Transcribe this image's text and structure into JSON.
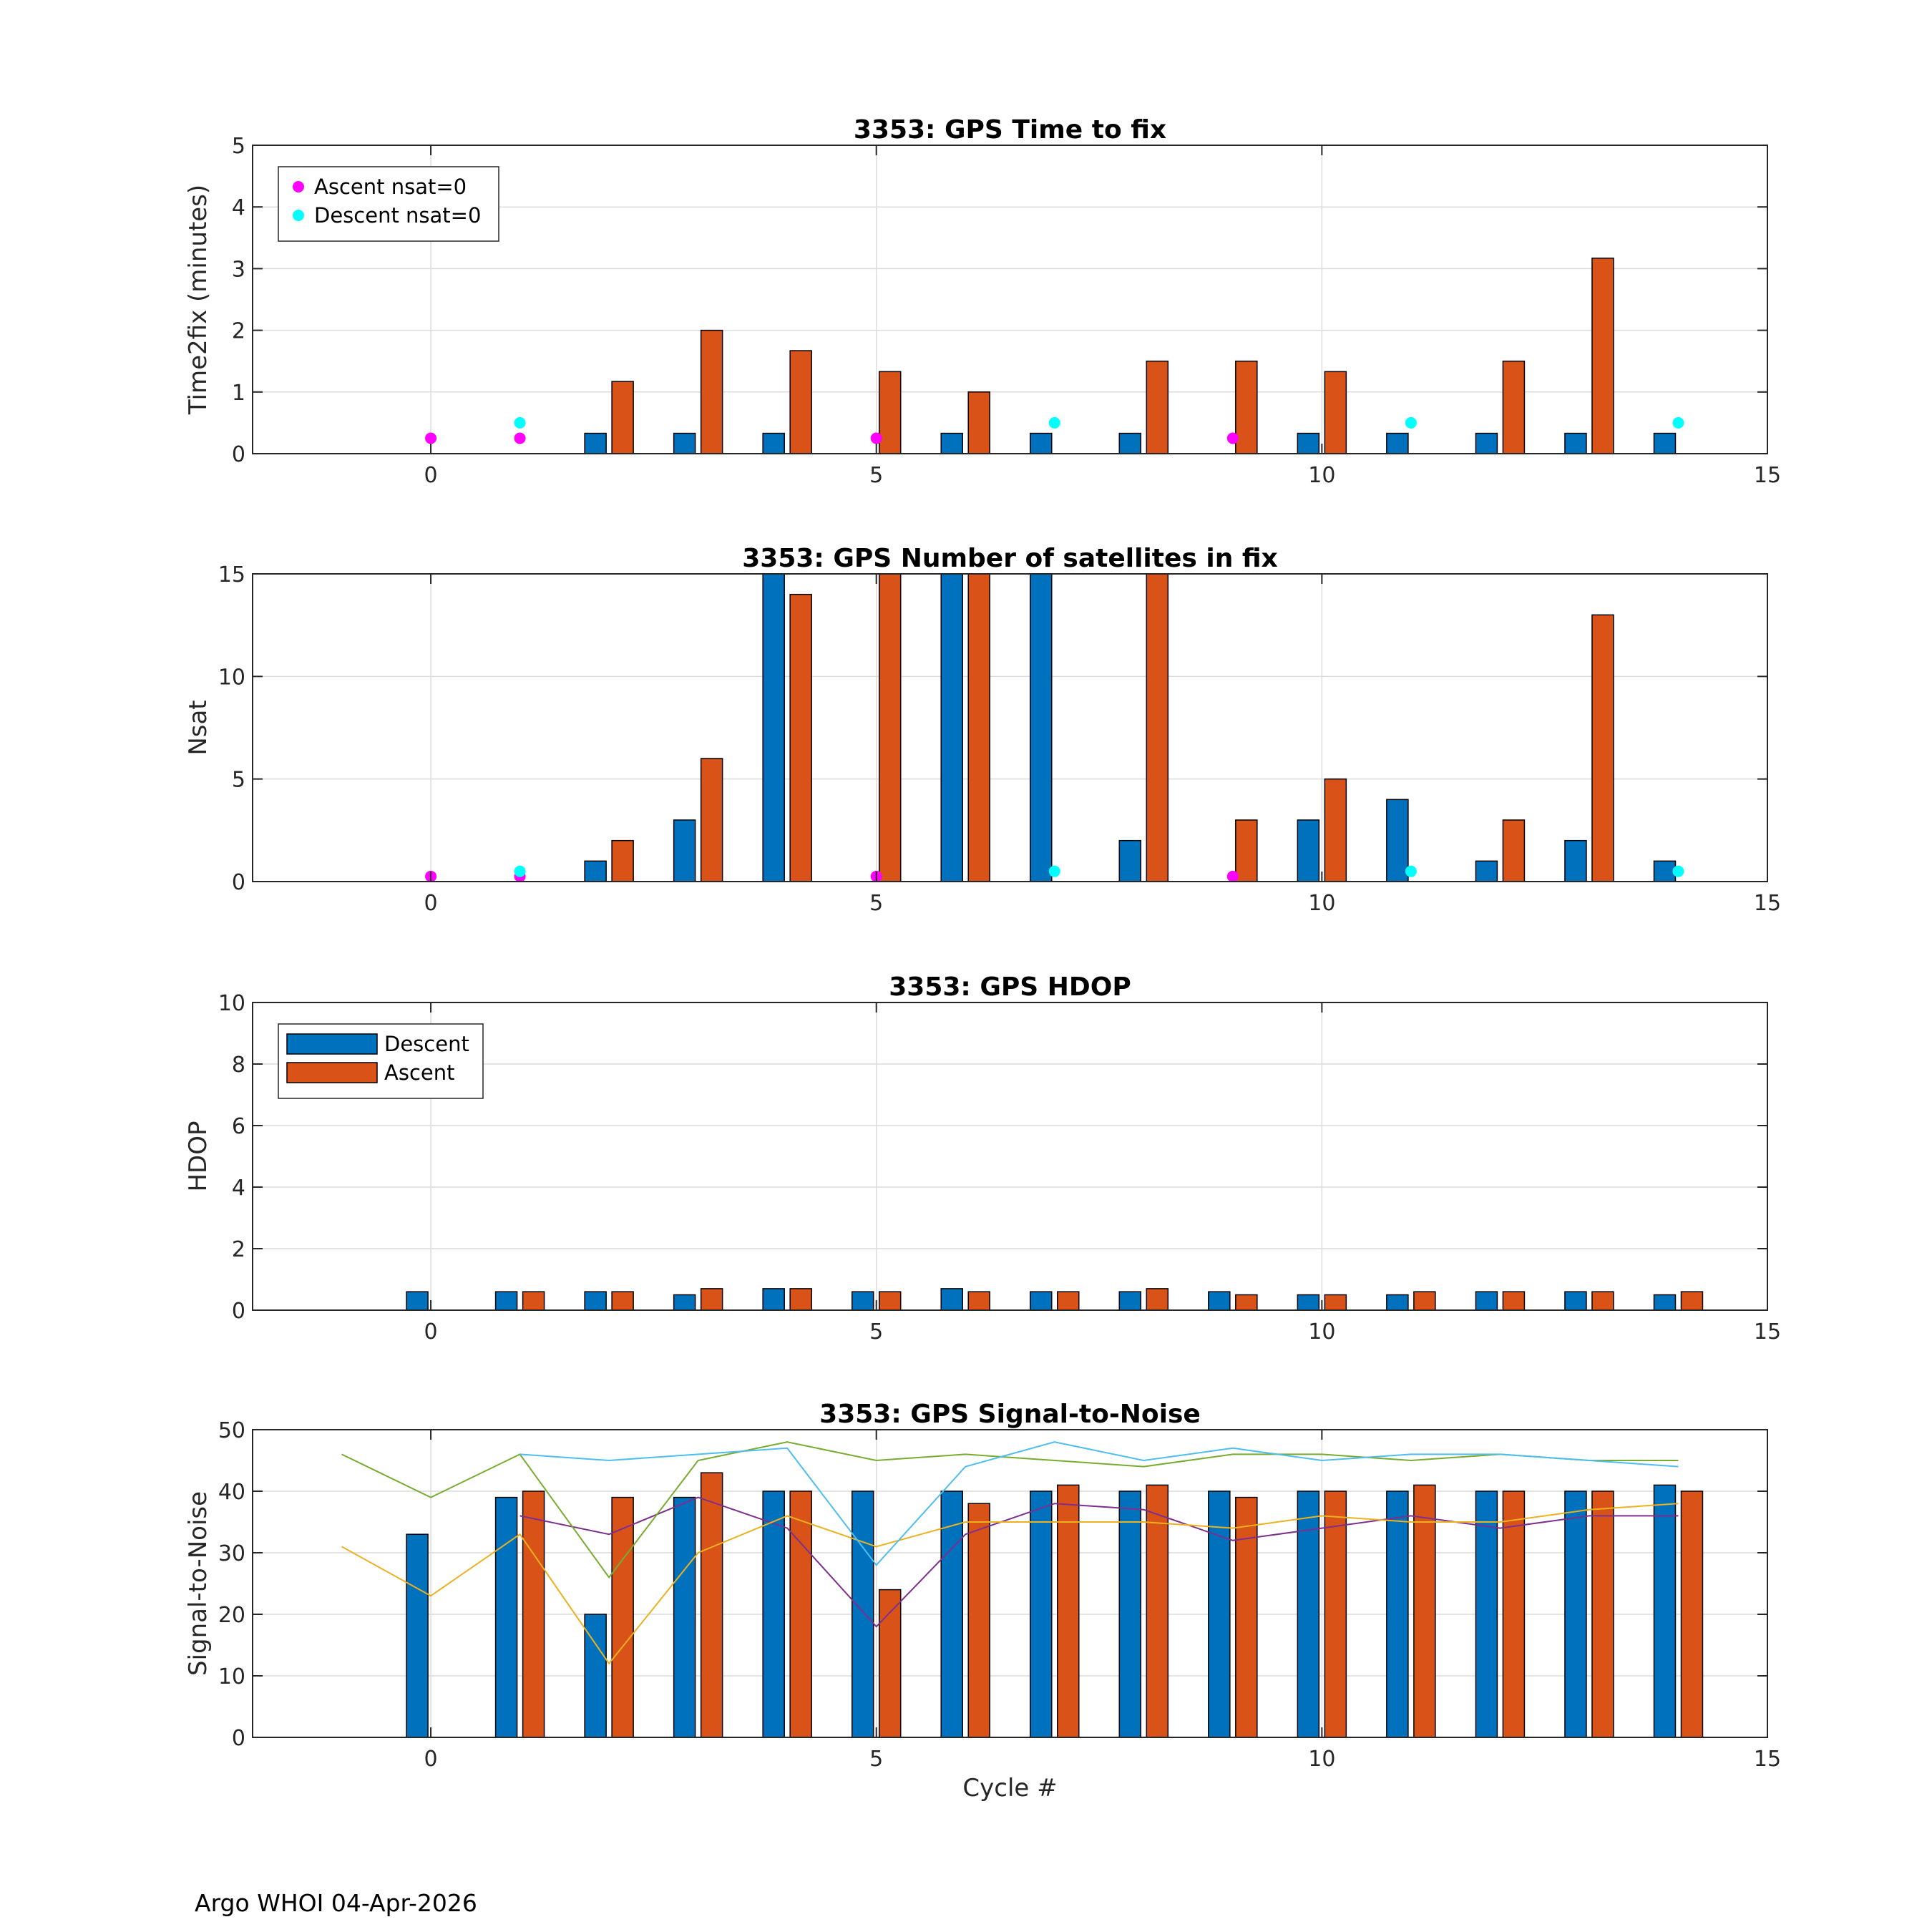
{
  "footer": "Argo WHOI 04-Apr-2026",
  "colors": {
    "descent": "#0072BD",
    "ascent": "#D95319",
    "ascent_nsat0": "#FF00FF",
    "descent_nsat0": "#00FFFF",
    "snr_lines": [
      "#7E2F8E",
      "#EDB120",
      "#77AC30",
      "#4DBEEE"
    ]
  },
  "chart_data": [
    {
      "type": "bar",
      "title": "3353: GPS Time to fix",
      "xlabel": "",
      "ylabel": "Time2fix (minutes)",
      "xlim": [
        -2,
        15
      ],
      "ylim": [
        0,
        5
      ],
      "xticks": [
        0,
        5,
        10,
        15
      ],
      "yticks": [
        0,
        1,
        2,
        3,
        4,
        5
      ],
      "grid": true,
      "x": [
        0,
        1,
        2,
        3,
        4,
        5,
        6,
        7,
        8,
        9,
        10,
        11,
        12,
        13,
        14
      ],
      "series": [
        {
          "name": "Descent",
          "values": [
            null,
            null,
            0.33,
            0.33,
            0.33,
            null,
            0.33,
            0.33,
            0.33,
            null,
            0.33,
            0.33,
            0.33,
            0.33,
            0.33
          ]
        },
        {
          "name": "Ascent",
          "values": [
            null,
            null,
            1.17,
            2.0,
            1.67,
            1.33,
            1.0,
            null,
            1.5,
            1.5,
            1.33,
            null,
            1.5,
            3.17,
            null
          ]
        }
      ],
      "markers": [
        {
          "name": "Ascent nsat=0",
          "x": [
            0,
            1,
            5,
            9
          ],
          "y": [
            0.25,
            0.25,
            0.25,
            0.25
          ]
        },
        {
          "name": "Descent nsat=0",
          "x": [
            1,
            7,
            11,
            14
          ],
          "y": [
            0.5,
            0.5,
            0.5,
            0.5
          ]
        }
      ],
      "legend": {
        "placement": "top-left",
        "entries": [
          "Ascent nsat=0",
          "Descent nsat=0"
        ]
      }
    },
    {
      "type": "bar",
      "title": "3353: GPS Number of satellites in fix",
      "xlabel": "",
      "ylabel": "Nsat",
      "xlim": [
        -2,
        15
      ],
      "ylim": [
        0,
        15
      ],
      "xticks": [
        0,
        5,
        10,
        15
      ],
      "yticks": [
        0,
        5,
        10,
        15
      ],
      "grid": true,
      "x": [
        0,
        1,
        2,
        3,
        4,
        5,
        6,
        7,
        8,
        9,
        10,
        11,
        12,
        13,
        14
      ],
      "series": [
        {
          "name": "Descent",
          "values": [
            null,
            null,
            1,
            3,
            15,
            null,
            15,
            15,
            2,
            null,
            3,
            4,
            1,
            2,
            1
          ]
        },
        {
          "name": "Ascent",
          "values": [
            null,
            null,
            2,
            6,
            14,
            15,
            15,
            null,
            15,
            3,
            5,
            null,
            3,
            13,
            null
          ]
        }
      ],
      "markers": [
        {
          "name": "Ascent nsat=0",
          "x": [
            0,
            1,
            5,
            9
          ],
          "y": [
            0.25,
            0.25,
            0.25,
            0.25
          ]
        },
        {
          "name": "Descent nsat=0",
          "x": [
            1,
            7,
            11,
            14
          ],
          "y": [
            0.5,
            0.5,
            0.5,
            0.5
          ]
        }
      ]
    },
    {
      "type": "bar",
      "title": "3353: GPS HDOP",
      "xlabel": "",
      "ylabel": "HDOP",
      "xlim": [
        -2,
        15
      ],
      "ylim": [
        0,
        10
      ],
      "xticks": [
        0,
        5,
        10,
        15
      ],
      "yticks": [
        0,
        2,
        4,
        6,
        8,
        10
      ],
      "grid": true,
      "x": [
        0,
        1,
        2,
        3,
        4,
        5,
        6,
        7,
        8,
        9,
        10,
        11,
        12,
        13,
        14
      ],
      "series": [
        {
          "name": "Descent",
          "values": [
            0.6,
            0.6,
            0.6,
            0.5,
            0.7,
            0.6,
            0.7,
            0.6,
            0.6,
            0.6,
            0.5,
            0.5,
            0.6,
            0.6,
            0.5
          ]
        },
        {
          "name": "Ascent",
          "values": [
            null,
            0.6,
            0.6,
            0.7,
            0.7,
            0.6,
            0.6,
            0.6,
            0.7,
            0.5,
            0.5,
            0.6,
            0.6,
            0.6,
            0.6
          ]
        }
      ],
      "legend": {
        "placement": "top-left",
        "entries": [
          "Descent",
          "Ascent"
        ]
      }
    },
    {
      "type": "bar",
      "title": "3353: GPS Signal-to-Noise",
      "xlabel": "Cycle #",
      "ylabel": "Signal-to-Noise",
      "xlim": [
        -2,
        15
      ],
      "ylim": [
        0,
        50
      ],
      "xticks": [
        0,
        5,
        10,
        15
      ],
      "yticks": [
        0,
        10,
        20,
        30,
        40,
        50
      ],
      "grid": true,
      "x": [
        0,
        1,
        2,
        3,
        4,
        5,
        6,
        7,
        8,
        9,
        10,
        11,
        12,
        13,
        14
      ],
      "series": [
        {
          "name": "Descent",
          "values": [
            33,
            39,
            20,
            39,
            40,
            40,
            40,
            40,
            40,
            40,
            40,
            40,
            40,
            40,
            41
          ]
        },
        {
          "name": "Ascent",
          "values": [
            null,
            40,
            39,
            43,
            40,
            24,
            38,
            41,
            41,
            39,
            40,
            41,
            40,
            40,
            40
          ]
        }
      ],
      "lines": [
        {
          "x": [
            1,
            2,
            3,
            4,
            5,
            6,
            7,
            8,
            9,
            10,
            11,
            12,
            13,
            14
          ],
          "y": [
            36,
            33,
            39,
            34,
            18,
            33,
            38,
            37,
            32,
            34,
            36,
            34,
            36,
            36
          ]
        },
        {
          "x": [
            -1,
            0,
            1,
            2,
            3,
            4,
            5,
            6,
            7,
            8,
            9,
            10,
            11,
            12,
            13,
            14
          ],
          "y": [
            31,
            23,
            33,
            12,
            30,
            36,
            31,
            35,
            35,
            35,
            34,
            36,
            35,
            35,
            37,
            38
          ]
        },
        {
          "x": [
            -1,
            0,
            1,
            2,
            3,
            4,
            5,
            6,
            7,
            8,
            9,
            10,
            11,
            12,
            13,
            14
          ],
          "y": [
            46,
            39,
            46,
            26,
            45,
            48,
            45,
            46,
            45,
            44,
            46,
            46,
            45,
            46,
            45,
            45
          ]
        },
        {
          "x": [
            1,
            2,
            3,
            4,
            5,
            6,
            7,
            8,
            9,
            10,
            11,
            12,
            13,
            14
          ],
          "y": [
            46,
            45,
            46,
            47,
            28,
            44,
            48,
            45,
            47,
            45,
            46,
            46,
            45,
            44
          ]
        }
      ]
    }
  ]
}
